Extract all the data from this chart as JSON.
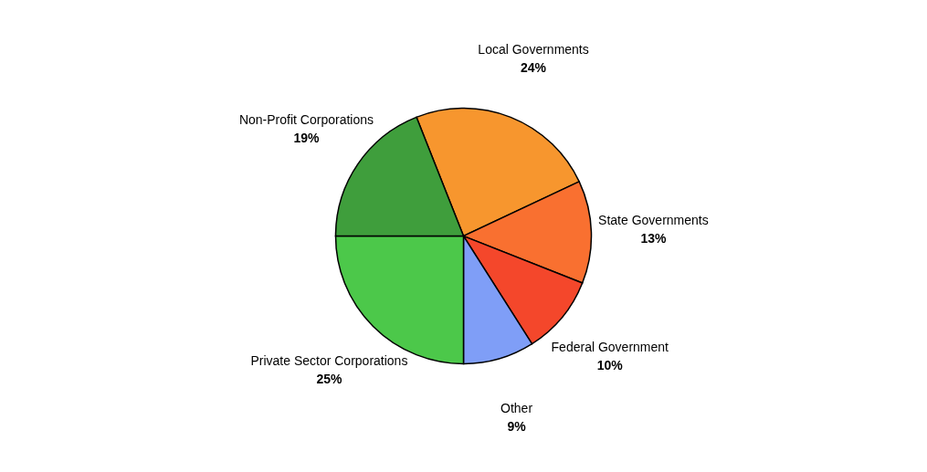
{
  "chart_data": {
    "type": "pie",
    "categories": [
      "Local Governments",
      "State Governments",
      "Federal Government",
      "Other",
      "Private Sector Corporations",
      "Non-Profit Corporations"
    ],
    "values": [
      24,
      13,
      10,
      9,
      25,
      19
    ],
    "value_labels": [
      "24%",
      "13%",
      "10%",
      "9%",
      "25%",
      "19%"
    ],
    "colors": [
      "#f7962e",
      "#f97030",
      "#f4472b",
      "#7f9ef7",
      "#4cc84a",
      "#3f9e3c"
    ],
    "legend": false
  }
}
